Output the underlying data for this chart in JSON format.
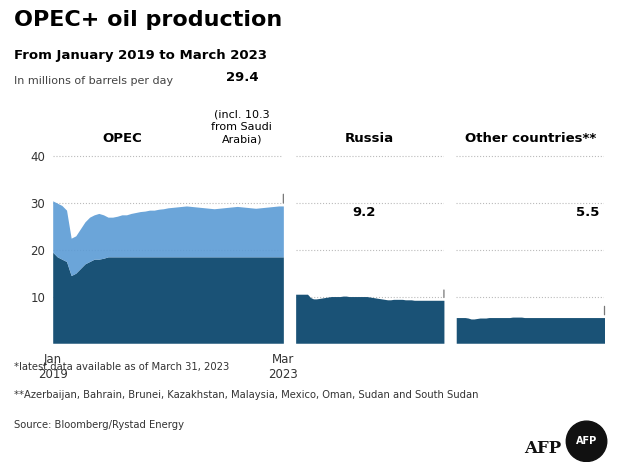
{
  "title": "OPEC+ oil production",
  "subtitle": "From January 2019 to March 2023",
  "ylabel": "In millions of barrels per day",
  "bg_color": "#ffffff",
  "ylim": [
    0,
    42
  ],
  "yticks": [
    10,
    20,
    30,
    40
  ],
  "color_dark": "#1a5276",
  "color_light": "#5b9bd5",
  "annotation_opec_val": "29.4",
  "annotation_opec_sub": "(incl. 10.3\nfrom Saudi\nArabia)",
  "annotation_russia": "9.2",
  "annotation_other": "5.5",
  "footnote1": "*latest data available as of March 31, 2023",
  "footnote2": "**Azerbaijan, Bahrain, Brunei, Kazakhstan, Malaysia, Mexico, Oman, Sudan and South Sudan",
  "source": "Source: Bloomberg/Rystad Energy",
  "opec_dark_base": [
    19.5,
    18.5,
    18.0,
    17.5,
    14.5,
    15.0,
    16.0,
    17.0,
    17.5,
    18.0,
    18.0,
    18.2,
    18.5,
    18.5,
    18.5,
    18.5,
    18.5,
    18.5,
    18.5,
    18.5,
    18.5,
    18.5,
    18.5,
    18.5,
    18.5,
    18.5,
    18.5,
    18.5,
    18.5,
    18.5,
    18.5,
    18.5,
    18.5,
    18.5,
    18.5,
    18.5,
    18.5,
    18.5,
    18.5,
    18.5,
    18.5,
    18.5,
    18.5,
    18.5,
    18.5,
    18.5,
    18.5,
    18.5,
    18.5,
    18.5,
    18.5
  ],
  "opec_total": [
    30.5,
    30.0,
    29.5,
    28.5,
    22.5,
    23.0,
    24.5,
    26.0,
    27.0,
    27.5,
    27.8,
    27.5,
    27.0,
    27.0,
    27.2,
    27.5,
    27.5,
    27.8,
    28.0,
    28.2,
    28.3,
    28.5,
    28.5,
    28.7,
    28.8,
    29.0,
    29.1,
    29.2,
    29.3,
    29.4,
    29.3,
    29.2,
    29.1,
    29.0,
    28.9,
    28.8,
    28.9,
    29.0,
    29.1,
    29.2,
    29.3,
    29.2,
    29.1,
    29.0,
    28.9,
    29.0,
    29.1,
    29.2,
    29.3,
    29.4,
    29.4
  ],
  "russia_total": [
    10.5,
    10.5,
    10.5,
    10.5,
    10.5,
    9.8,
    9.5,
    9.5,
    9.6,
    9.7,
    9.8,
    9.9,
    10.0,
    10.0,
    10.0,
    10.0,
    10.1,
    10.1,
    10.0,
    10.0,
    10.0,
    10.0,
    10.0,
    10.0,
    10.0,
    9.9,
    9.8,
    9.7,
    9.6,
    9.5,
    9.4,
    9.3,
    9.3,
    9.4,
    9.4,
    9.4,
    9.4,
    9.3,
    9.3,
    9.3,
    9.2,
    9.2,
    9.2,
    9.2,
    9.2,
    9.2,
    9.2,
    9.2,
    9.2,
    9.2,
    9.2
  ],
  "other_total": [
    5.5,
    5.5,
    5.5,
    5.5,
    5.4,
    5.2,
    5.2,
    5.3,
    5.4,
    5.4,
    5.4,
    5.5,
    5.5,
    5.5,
    5.5,
    5.5,
    5.5,
    5.5,
    5.5,
    5.6,
    5.6,
    5.6,
    5.6,
    5.5,
    5.5,
    5.5,
    5.5,
    5.5,
    5.5,
    5.5,
    5.5,
    5.5,
    5.5,
    5.5,
    5.5,
    5.5,
    5.5,
    5.5,
    5.5,
    5.5,
    5.5,
    5.5,
    5.5,
    5.5,
    5.5,
    5.5,
    5.5,
    5.5,
    5.5,
    5.5,
    5.5
  ]
}
